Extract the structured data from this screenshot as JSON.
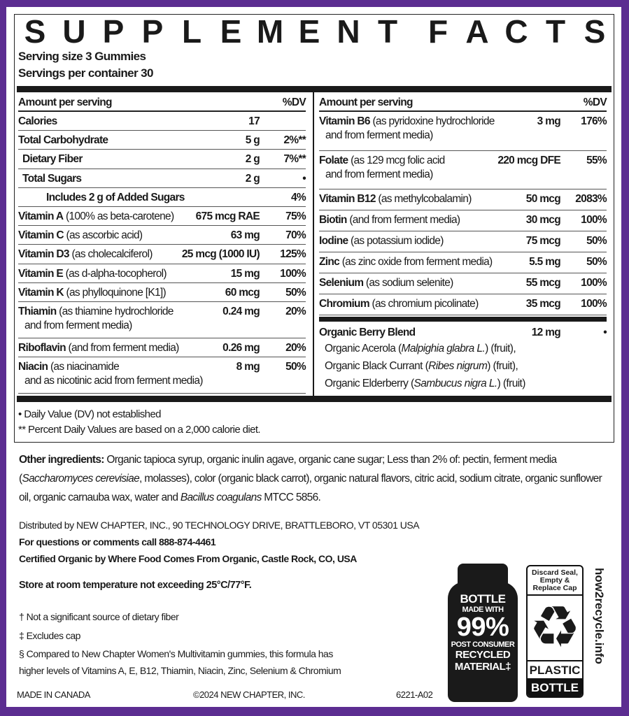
{
  "colors": {
    "border": "#5c2d91",
    "text": "#1a1a1a"
  },
  "title": "SUPPLEMENT FACTS",
  "serving_size": "Serving size 3 Gummies",
  "servings_per_container": "Servings per container 30",
  "left": {
    "header_amount": "Amount per serving",
    "header_dv": "%DV",
    "rows": [
      {
        "name": "Calories",
        "desc": "",
        "desc2": "",
        "amount": "17",
        "dv": "",
        "indent": 0
      },
      {
        "name": "Total Carbohydrate",
        "desc": "",
        "desc2": "",
        "amount": "5 g",
        "dv": "2%**",
        "indent": 0
      },
      {
        "name": "Dietary Fiber",
        "desc": "",
        "desc2": "",
        "amount": "2 g",
        "dv": "7%**",
        "indent": 1
      },
      {
        "name": "Total Sugars",
        "desc": "",
        "desc2": "",
        "amount": "2 g",
        "dv": "•",
        "indent": 1
      },
      {
        "name": "Includes 2 g of Added Sugars",
        "desc": "",
        "desc2": "",
        "amount": "",
        "dv": "4%",
        "indent": 2
      },
      {
        "name": "Vitamin A",
        "desc": "(100% as beta-carotene)",
        "desc2": "",
        "amount": "675 mcg RAE",
        "dv": "75%",
        "indent": 0
      },
      {
        "name": "Vitamin C",
        "desc": "(as ascorbic acid)",
        "desc2": "",
        "amount": "63 mg",
        "dv": "70%",
        "indent": 0
      },
      {
        "name": "Vitamin D3",
        "desc": "(as cholecalciferol)",
        "desc2": "",
        "amount": "25 mcg (1000 IU)",
        "dv": "125%",
        "indent": 0
      },
      {
        "name": "Vitamin E",
        "desc": "(as d-alpha-tocopherol)",
        "desc2": "",
        "amount": "15 mg",
        "dv": "100%",
        "indent": 0
      },
      {
        "name": "Vitamin K",
        "desc": "(as phylloquinone [K1])",
        "desc2": "",
        "amount": "60 mcg",
        "dv": "50%",
        "indent": 0
      },
      {
        "name": "Thiamin",
        "desc": "(as thiamine hydrochloride",
        "desc2": "and from ferment media)",
        "amount": "0.24 mg",
        "dv": "20%",
        "indent": 0
      },
      {
        "name": "Riboflavin",
        "desc": "(and from ferment media)",
        "desc2": "",
        "amount": "0.26 mg",
        "dv": "20%",
        "indent": 0
      },
      {
        "name": "Niacin",
        "desc": "(as niacinamide",
        "desc2": "and as nicotinic acid from ferment media)",
        "amount": "8 mg",
        "dv": "50%",
        "indent": 0
      }
    ]
  },
  "right": {
    "header_amount": "Amount per serving",
    "header_dv": "%DV",
    "rows": [
      {
        "name": "Vitamin B6",
        "desc": "(as pyridoxine hydrochloride",
        "desc2": "and from ferment media)",
        "amount": "3 mg",
        "dv": "176%",
        "indent": 0
      },
      {
        "name": "Folate",
        "desc": "(as 129 mcg folic acid",
        "desc2": "and from ferment media)",
        "amount": "220 mcg DFE",
        "dv": "55%",
        "indent": 0
      },
      {
        "name": "Vitamin B12",
        "desc": "(as methylcobalamin)",
        "desc2": "",
        "amount": "50 mcg",
        "dv": "2083%",
        "indent": 0
      },
      {
        "name": "Biotin",
        "desc": "(and from ferment media)",
        "desc2": "",
        "amount": "30 mcg",
        "dv": "100%",
        "indent": 0
      },
      {
        "name": "Iodine",
        "desc": "(as potassium iodide)",
        "desc2": "",
        "amount": "75 mcg",
        "dv": "50%",
        "indent": 0
      },
      {
        "name": "Zinc",
        "desc": "(as zinc oxide from ferment media)",
        "desc2": "",
        "amount": "5.5 mg",
        "dv": "50%",
        "indent": 0
      },
      {
        "name": "Selenium",
        "desc": "(as sodium selenite)",
        "desc2": "",
        "amount": "55 mcg",
        "dv": "100%",
        "indent": 0
      },
      {
        "name": "Chromium",
        "desc": "(as chromium picolinate)",
        "desc2": "",
        "amount": "35 mcg",
        "dv": "100%",
        "indent": 0
      }
    ],
    "blend": {
      "name": "Organic Berry Blend",
      "amount": "12 mg",
      "dv": "•",
      "items": [
        {
          "pre": "Organic Acerola (",
          "latin": "Malpighia glabra L.",
          "post": ") (fruit),"
        },
        {
          "pre": "Organic Black Currant (",
          "latin": "Ribes nigrum",
          "post": ") (fruit),"
        },
        {
          "pre": "Organic Elderberry (",
          "latin": "Sambucus nigra L.",
          "post": ") (fruit)"
        }
      ]
    }
  },
  "footnotes": [
    "• Daily Value (DV) not established",
    "** Percent Daily Values are based on a 2,000 calorie diet."
  ],
  "other_ingredients": {
    "label": "Other ingredients:",
    "segments": [
      {
        "t": " Organic tapioca syrup, organic inulin agave, organic cane sugar; Less than 2% of: pectin, ferment media (",
        "i": false
      },
      {
        "t": "Saccharomyces cerevisiae",
        "i": true
      },
      {
        "t": ", molasses), color (organic black carrot), organic natural flavors, citric acid, sodium citrate, organic sunflower oil, organic carnauba wax, water and ",
        "i": false
      },
      {
        "t": "Bacillus coagulans",
        "i": true
      },
      {
        "t": " MTCC 5856.",
        "i": false
      }
    ]
  },
  "distributed": "Distributed by NEW CHAPTER, INC., 90 TECHNOLOGY DRIVE, BRATTLEBORO, VT 05301 USA",
  "questions": "For questions or comments call 888-874-4461",
  "certified": "Certified Organic by Where Food Comes From Organic, Castle Rock, CO, USA",
  "storage": "Store at room temperature not exceeding 25°C/77°F.",
  "notes": [
    "† Not a significant source of dietary fiber",
    "‡ Excludes cap",
    "§ Compared to New Chapter Women's Multivitamin gummies, this formula has",
    "higher levels of Vitamins A, E, B12, Thiamin, Niacin, Zinc, Selenium & Chromium"
  ],
  "made_in": "MADE IN CANADA",
  "copyright": "©2024 NEW CHAPTER, INC.",
  "code": "6221-A02",
  "bottle_badge": {
    "line1": "BOTTLE",
    "line2": "MADE WITH",
    "pct": "99%",
    "line3": "POST CONSUMER",
    "line4": "RECYCLED",
    "line5": "MATERIAL‡"
  },
  "recycle": {
    "top": "Discard Seal, Empty & Replace Cap",
    "icon": "recycle-icon",
    "type1": "PLASTIC",
    "type2": "BOTTLE",
    "url": "how2recycle.info"
  }
}
